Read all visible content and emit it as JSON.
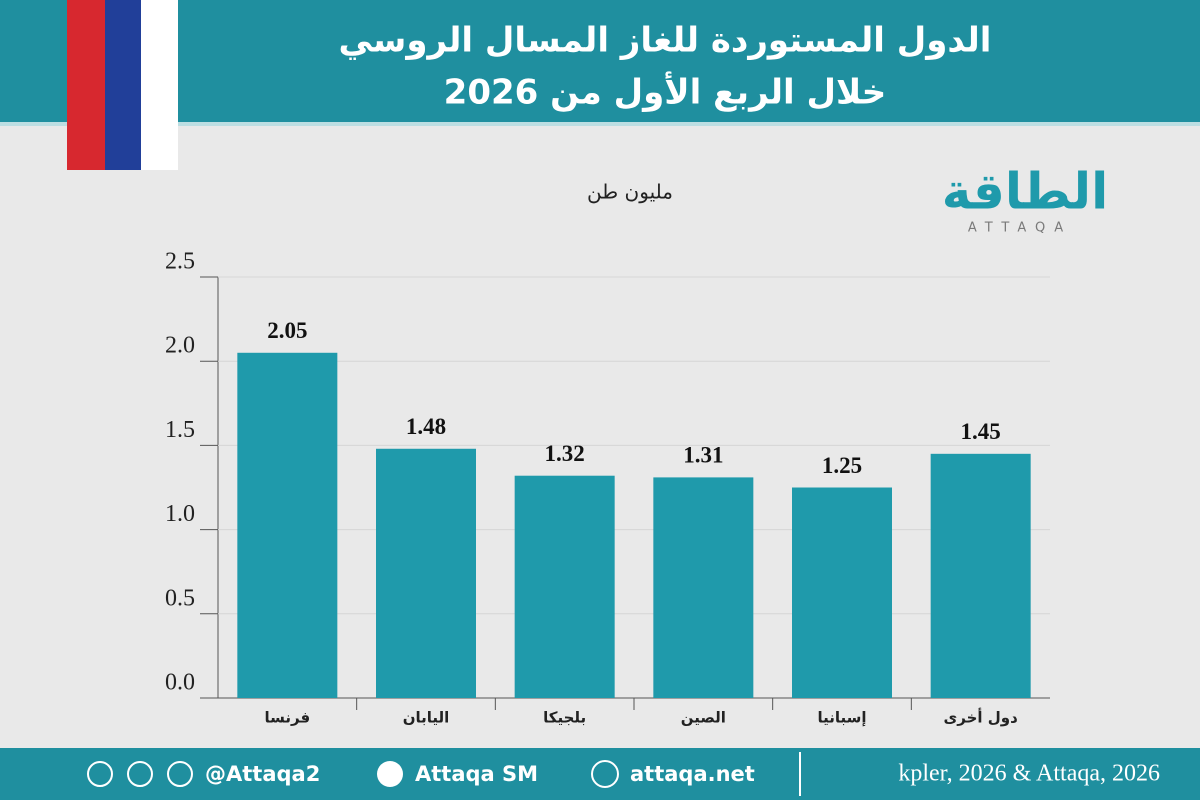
{
  "chart_data": {
    "type": "bar",
    "title": "الدول المستوردة للغاز المسال الروسي",
    "subtitle": "خلال الربع الأول من 2026",
    "y_label": "مليون طن",
    "categories": [
      "فرنسا",
      "اليابان",
      "بلجيكا",
      "الصين",
      "إسبانيا",
      "دول أخرى"
    ],
    "values": [
      2.05,
      1.48,
      1.32,
      1.31,
      1.25,
      1.45
    ],
    "color": "#1f9aab",
    "ylim": [
      0,
      2.5
    ],
    "yticks": [
      {
        "value": 0,
        "label": "0.0"
      },
      0.5,
      {
        "value": 1,
        "label": "1.0"
      },
      1.5,
      {
        "value": 2,
        "label": "2.0"
      },
      2.5
    ],
    "grid": true,
    "source": "kpler, 2026 & Attaqa, 2026"
  },
  "logo": {
    "name": "الطاقة",
    "latin": "ATTAQA"
  },
  "footer": {
    "handle": "@Attaqa2",
    "youtube": "Attaqa SM",
    "website": "attaqa.net"
  }
}
